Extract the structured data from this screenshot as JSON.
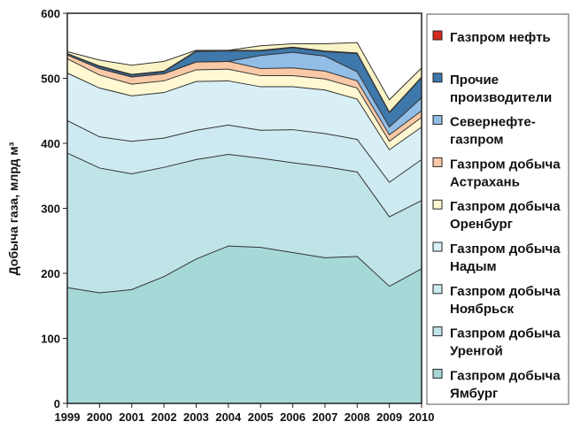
{
  "chart_data": {
    "type": "area",
    "stacked": true,
    "title": "",
    "xlabel": "",
    "ylabel": "Добыча газа, млрд м³",
    "ylim": [
      0,
      600
    ],
    "yticks": [
      0,
      100,
      200,
      300,
      400,
      500,
      600
    ],
    "grid": false,
    "legend_position": "right",
    "x": [
      1999,
      2000,
      2001,
      2002,
      2003,
      2004,
      2005,
      2006,
      2007,
      2008,
      2009,
      2010
    ],
    "x_tick_labels": [
      "1999",
      "2000",
      "2001",
      "2002",
      "2003",
      "2004",
      "2005",
      "2006",
      "2007",
      "2008",
      "2009",
      "2010"
    ],
    "series": [
      {
        "name": "Газпром добыча Ямбург",
        "legend_lines": [
          "Газпром добыча",
          "Ямбург"
        ],
        "color": "#a6d8d8",
        "values": [
          178,
          170,
          175,
          195,
          222,
          242,
          240,
          232,
          224,
          226,
          180,
          207
        ]
      },
      {
        "name": "Газпром добыча Уренгой",
        "legend_lines": [
          "Газпром добыча",
          "Уренгой"
        ],
        "color": "#bfe4e8",
        "values": [
          207,
          192,
          178,
          168,
          153,
          141,
          137,
          138,
          140,
          130,
          107,
          105
        ]
      },
      {
        "name": "Газпром добыча Ноябрьск",
        "legend_lines": [
          "Газпром добыча",
          "Ноябрьск"
        ],
        "color": "#cdeaf2",
        "values": [
          50,
          48,
          50,
          45,
          45,
          45,
          43,
          51,
          51,
          50,
          53,
          63
        ]
      },
      {
        "name": "Газпром добыча Надым",
        "legend_lines": [
          "Газпром добыча",
          "Надым"
        ],
        "color": "#d8eff6",
        "values": [
          73,
          75,
          70,
          70,
          75,
          68,
          67,
          66,
          67,
          62,
          50,
          50
        ]
      },
      {
        "name": "Газпром добыча Оренбург",
        "legend_lines": [
          "Газпром добыча",
          "Оренбург"
        ],
        "color": "#fff8d2",
        "values": [
          22,
          20,
          18,
          18,
          18,
          18,
          17,
          17,
          17,
          17,
          13,
          15
        ]
      },
      {
        "name": "Газпром добыча Астрахань",
        "legend_lines": [
          "Газпром добыча",
          "Астрахань"
        ],
        "color": "#f9c9a7",
        "values": [
          6,
          10,
          11,
          11,
          12,
          12,
          11,
          12,
          12,
          11,
          10,
          10
        ]
      },
      {
        "name": "Севернефтегазпром",
        "legend_lines": [
          "Севернефте-",
          "газпром"
        ],
        "color": "#92bde6",
        "values": [
          0,
          0,
          0,
          0,
          0,
          0,
          20,
          24,
          23,
          14,
          12,
          20
        ]
      },
      {
        "name": "Прочие производители",
        "legend_lines": [
          "Прочие",
          "производители"
        ],
        "color": "#3f78aa",
        "values": [
          2,
          3,
          3,
          3,
          16,
          16,
          7,
          7,
          7,
          28,
          22,
          31
        ]
      },
      {
        "name": "Газпром нефть",
        "legend_lines": [
          "Газпром нефть"
        ],
        "color": "#d42a1e",
        "values": [
          0,
          1,
          1,
          1,
          1,
          1,
          1,
          1,
          1,
          1,
          1,
          1
        ]
      }
    ],
    "total_upper_bound": [
      541,
      528,
      520,
      526,
      543,
      543,
      550,
      553,
      553,
      555,
      467,
      516
    ],
    "remainder_color": "#faf3c6"
  }
}
